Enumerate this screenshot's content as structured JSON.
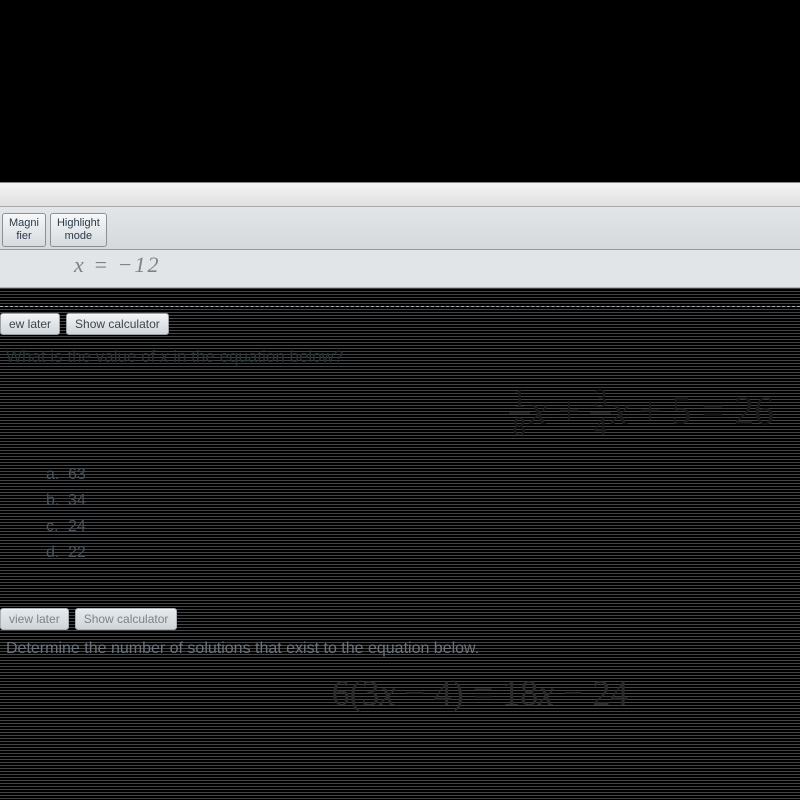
{
  "toolbar": {
    "magnifier": {
      "line1": "Magni",
      "line2": "fier"
    },
    "highlight": {
      "line1": "Highlight",
      "line2": "mode"
    }
  },
  "prev_equation_fragment": "x  =  −12",
  "question1": {
    "review_later_label": "ew later",
    "show_calc_label": "Show calculator",
    "prompt_prefix": "What is the value of ",
    "prompt_var": "x",
    "prompt_suffix": " in the equation below?",
    "equation": {
      "frac1_num": "1",
      "frac1_den": "8",
      "var1": "x",
      "plus1": " + ",
      "frac2_num": "3",
      "frac2_den": "4",
      "var2": "x",
      "plus2": " + ",
      "const1": "5",
      "eq": " = ",
      "rhs": "26"
    },
    "answers": [
      {
        "label": "a.",
        "value": "63"
      },
      {
        "label": "b.",
        "value": "34"
      },
      {
        "label": "c.",
        "value": "24"
      },
      {
        "label": "d.",
        "value": "22"
      }
    ]
  },
  "question2": {
    "review_later_label": "view later",
    "show_calc_label": "Show calculator",
    "prompt": "Determine the number of solutions that exist to the equation below.",
    "equation_parts": {
      "lhs_pre": "6(3",
      "lhs_var": "x",
      "lhs_post": " − 4) = 18",
      "rhs_var": "x",
      "rhs_post": " − 24"
    }
  },
  "colors": {
    "page_bg": "#d8dde0",
    "text_primary": "#263238",
    "text_muted": "#6b747c",
    "button_border": "#9aa0a6"
  }
}
